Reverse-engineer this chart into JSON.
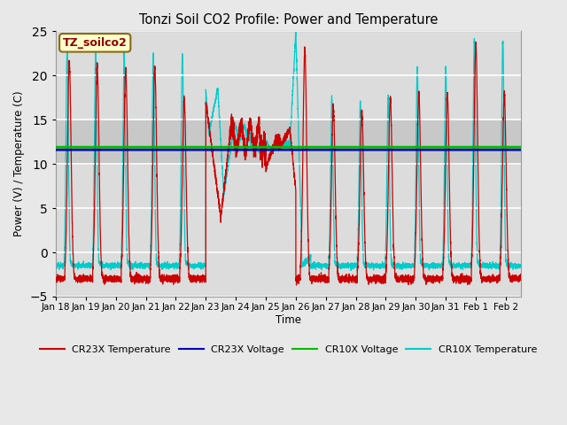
{
  "title": "Tonzi Soil CO2 Profile: Power and Temperature",
  "ylabel": "Power (V) / Temperature (C)",
  "xlabel": "Time",
  "ylim": [
    -5,
    25
  ],
  "xlim": [
    0,
    15.5
  ],
  "annotation_text": "TZ_soilco2",
  "annotation_color": "#8B0000",
  "annotation_bg": "#FFFFCC",
  "annotation_border": "#8B6914",
  "fig_bg_color": "#E8E8E8",
  "plot_bg": "#DCDCDC",
  "cr23x_voltage_level": 11.6,
  "cr10x_voltage_level": 11.9,
  "cr23x_voltage_color": "#0000BB",
  "cr10x_voltage_color": "#00BB00",
  "cr23x_temp_color": "#CC0000",
  "cr10x_temp_color": "#00CCCC",
  "xtick_labels": [
    "Jan 18",
    "Jan 19",
    "Jan 20",
    "Jan 21",
    "Jan 22",
    "Jan 23",
    "Jan 24",
    "Jan 25",
    "Jan 26",
    "Jan 27",
    "Jan 28",
    "Jan 29",
    "Jan 30",
    "Jan 31",
    "Feb 1",
    "Feb 2"
  ],
  "xtick_positions": [
    0,
    1,
    2,
    3,
    4,
    5,
    6,
    7,
    8,
    9,
    10,
    11,
    12,
    13,
    14,
    15
  ],
  "ytick_positions": [
    -5,
    0,
    5,
    10,
    15,
    20,
    25
  ],
  "grid_color": "#FFFFFF",
  "shaded_band_y1": 10,
  "shaded_band_y2": 15,
  "shaded_band_color": "#C8C8C8"
}
